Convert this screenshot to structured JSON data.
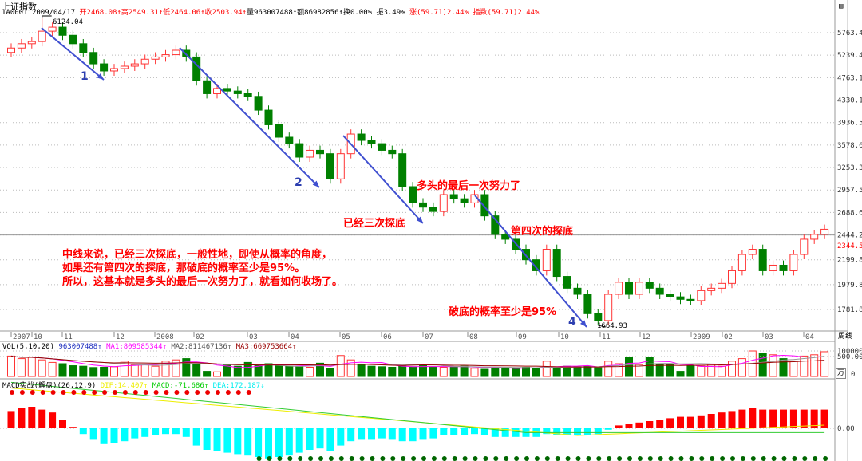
{
  "header": {
    "title": "上证指数",
    "code": "1A0001",
    "date": "2009/04/17",
    "open": "开2468.08↑",
    "high": "高2549.31↑",
    "low": "低2464.06↑",
    "close": "收2503.94↑",
    "volume": "量963007488↑",
    "amount": "额86982856↑",
    "turnover": "换0.00%",
    "amplitude": "振3.49%",
    "change": "涨(59.71)2.44%",
    "index": "指数(59.71)2.44%"
  },
  "period_label": "周线",
  "unit_label": "万",
  "top_icon": "calendar-icon",
  "vol_header": {
    "name": "VOL(5,10,20)",
    "vol": "963007488↑",
    "ma1": "MA1:809585344↑",
    "ma2": "MA2:811467136↑",
    "ma3": "MA3:669753664↑"
  },
  "macd_header": {
    "name": "MACD实战(解盘)(26,12,9)",
    "dif": "DIF:14.407↑",
    "macd": "MACD:-71.686↑",
    "dea": "DEA:172.187↓"
  },
  "annotations": {
    "high_label": "6124.04",
    "low_label": "1664.93",
    "n1": "1",
    "n2": "2",
    "n4": "4",
    "t1": "多头的最后一次努力了",
    "t2": "已经三次探底",
    "t3": "第四次的探底",
    "t4": "破底的概率至少是95%",
    "note": [
      "中线来说，已经三次探底，一般性地，即使从概率的角度，",
      "如果还有第四次的探底，那破底的概率至少是95%。",
      "所以，这基本就是多头的最后一次努力了，就看如何收场了。"
    ]
  },
  "colors": {
    "up": "#ff3333",
    "down": "#008000",
    "trend": "#4050d0",
    "macd_pos": "#ff0000",
    "macd_neg": "#00ffff"
  },
  "chart_data": {
    "type": "candlestick",
    "price_axis": {
      "scale": "log",
      "ticks": [
        5763.4,
        5239.4,
        4763.1,
        4330.1,
        3936.5,
        3578.6,
        3253.3,
        2957.5,
        2688.6,
        2444.2,
        2199.8,
        1979.8,
        1781.8
      ],
      "current": 2344.5
    },
    "date_ticks": [
      "2007",
      "10",
      "11",
      "12",
      "2008",
      "02",
      "03",
      "04",
      "05",
      "06",
      "07",
      "08",
      "09",
      "10",
      "11",
      "12",
      "2009",
      "02",
      "03",
      "04"
    ],
    "closes": [
      5400,
      5500,
      5550,
      5800,
      5900,
      5700,
      5500,
      5300,
      5050,
      4900,
      4950,
      5000,
      5050,
      5150,
      5200,
      5250,
      5350,
      5200,
      4700,
      4450,
      4550,
      4500,
      4450,
      4400,
      4150,
      3900,
      3700,
      3600,
      3400,
      3500,
      3450,
      3100,
      3450,
      3750,
      3650,
      3600,
      3500,
      3450,
      3000,
      2800,
      2750,
      2700,
      2900,
      2850,
      2800,
      2900,
      2650,
      2450,
      2400,
      2300,
      2200,
      2100,
      2300,
      2050,
      1950,
      1900,
      1750,
      1700,
      1900,
      2000,
      1900,
      2000,
      1950,
      1900,
      1880,
      1860,
      1850,
      1930,
      1950,
      1990,
      2100,
      2250,
      2300,
      2100,
      2150,
      2100,
      2250,
      2400,
      2450,
      2503.94
    ],
    "first_open": 5300,
    "max": 6124.04,
    "min": 1664.93,
    "volume_axis": {
      "ticks": [
        100000,
        0
      ],
      "unit": "万"
    },
    "volume": [
      80,
      70,
      75,
      65,
      55,
      50,
      42,
      40,
      35,
      36,
      38,
      60,
      45,
      48,
      40,
      60,
      65,
      70,
      50,
      20,
      18,
      45,
      40,
      55,
      42,
      50,
      45,
      40,
      38,
      36,
      52,
      32,
      82,
      65,
      48,
      40,
      38,
      36,
      40,
      38,
      42,
      38,
      36,
      38,
      40,
      32,
      28,
      36,
      32,
      30,
      36,
      32,
      60,
      34,
      40,
      38,
      40,
      34,
      60,
      50,
      74,
      46,
      76,
      48,
      46,
      20,
      42,
      40,
      48,
      40,
      60,
      70,
      100,
      90,
      85,
      70,
      60,
      80,
      85,
      97
    ],
    "macd_axis": {
      "ticks": [
        500.0,
        0.0
      ]
    },
    "macd_hist": [
      120,
      140,
      150,
      130,
      110,
      60,
      10,
      -40,
      -80,
      -110,
      -100,
      -90,
      -70,
      -60,
      -50,
      -40,
      -40,
      -60,
      -120,
      -150,
      -160,
      -170,
      -180,
      -190,
      -200,
      -210,
      -200,
      -190,
      -170,
      -150,
      -140,
      -160,
      -120,
      -90,
      -80,
      -80,
      -70,
      -80,
      -90,
      -90,
      -80,
      -70,
      -50,
      -50,
      -50,
      -40,
      -50,
      -60,
      -60,
      -60,
      -60,
      -60,
      -40,
      -50,
      -50,
      -50,
      -50,
      -40,
      -10,
      20,
      30,
      40,
      50,
      60,
      70,
      80,
      80,
      90,
      100,
      110,
      120,
      130,
      140,
      130,
      130,
      130,
      130,
      130,
      130,
      130
    ]
  }
}
